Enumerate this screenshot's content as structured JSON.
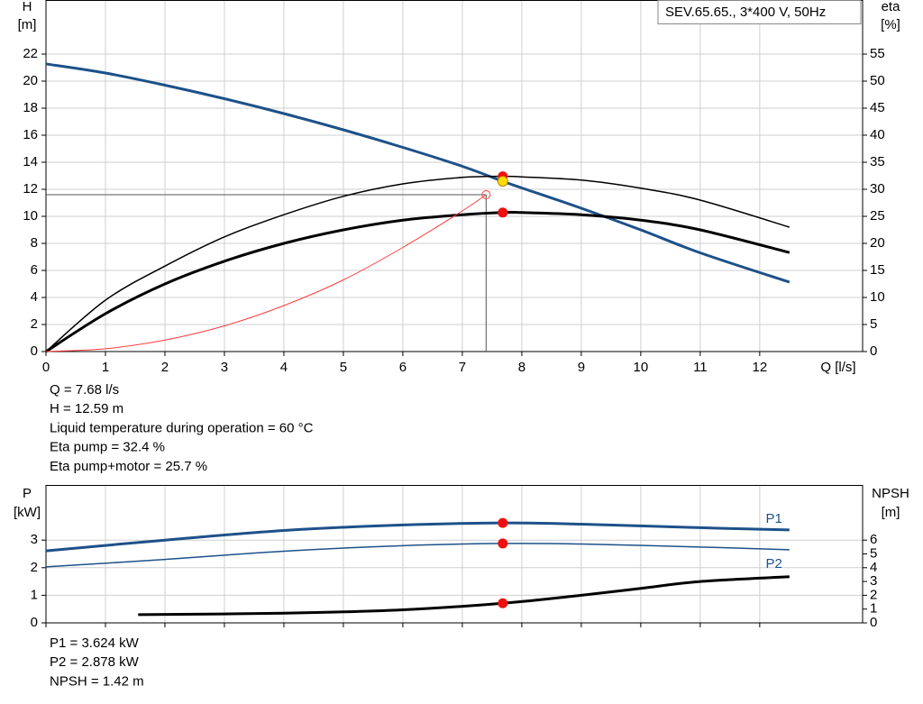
{
  "chart_data": [
    {
      "type": "line",
      "title": "SEV.65.65., 3*400 V, 50Hz",
      "ylabel": [
        "H",
        "[m]"
      ],
      "y2label": [
        "eta",
        "[%]"
      ],
      "xlabel": "Q [l/s]",
      "xlim": [
        0,
        13.73
      ],
      "xticks": [
        0,
        1,
        2,
        3,
        4,
        5,
        6,
        7,
        8,
        9,
        10,
        11,
        12
      ],
      "xtick_labels": true,
      "ylim": [
        0,
        26
      ],
      "yticks": [
        0,
        2,
        4,
        6,
        8,
        10,
        12,
        14,
        16,
        18,
        20,
        22
      ],
      "y2lim": [
        0,
        65
      ],
      "y2ticks": [
        0,
        5,
        10,
        15,
        20,
        25,
        30,
        35,
        40,
        45,
        50,
        55
      ],
      "grid": true,
      "series": [
        {
          "color": "#1d5189",
          "width": 3,
          "x": [
            0,
            1,
            2,
            3,
            4,
            5,
            6,
            7,
            7.68,
            8,
            9,
            10,
            11,
            12.5
          ],
          "values": [
            21.27,
            20.6,
            19.7,
            18.7,
            17.6,
            16.4,
            15.1,
            13.7,
            12.59,
            12.1,
            10.6,
            9.0,
            7.3,
            5.13
          ]
        },
        {
          "color": "#000000",
          "width": 1.5,
          "axis": "y2",
          "x": [
            0,
            1,
            2,
            3,
            4,
            5,
            6,
            7,
            7.68,
            8,
            9,
            10,
            11,
            12.5
          ],
          "values": [
            0,
            9.5,
            15.8,
            21.2,
            25.3,
            28.7,
            31.0,
            32.2,
            32.4,
            32.3,
            31.7,
            30.2,
            28.0,
            23.0
          ]
        },
        {
          "color": "#000000",
          "width": 3,
          "axis": "y2",
          "x": [
            0,
            1,
            2,
            3,
            4,
            5,
            6,
            7,
            7.68,
            8,
            9,
            10,
            11,
            12.5
          ],
          "values": [
            0,
            7.0,
            12.5,
            16.7,
            20.0,
            22.5,
            24.3,
            25.3,
            25.7,
            25.7,
            25.3,
            24.3,
            22.5,
            18.3
          ]
        },
        {
          "color": "#ff3b3b",
          "width": 1,
          "x": [
            0,
            1,
            2,
            3,
            4,
            5,
            6,
            7,
            7.4
          ],
          "values": [
            0,
            0.21,
            0.85,
            1.9,
            3.4,
            5.3,
            7.7,
            10.4,
            11.6
          ]
        }
      ],
      "guide": {
        "x": 7.4,
        "y": 11.6
      },
      "markers": [
        {
          "x": 7.68,
          "y": 32.4,
          "axis": "y2",
          "color": "#ee1111"
        },
        {
          "x": 7.68,
          "y": 12.59,
          "color": "#ffdd00"
        },
        {
          "x": 7.68,
          "y": 25.7,
          "axis": "y2",
          "color": "#ee1111"
        }
      ],
      "info": [
        "Q = 7.68 l/s",
        "H = 12.59 m",
        "Liquid temperature during operation = 60 °C",
        "Eta pump = 32.4 %",
        "Eta pump+motor = 25.7 %"
      ]
    },
    {
      "type": "line",
      "ylabel": [
        "P",
        "[kW]"
      ],
      "y2label": [
        "NPSH",
        "[m]"
      ],
      "xlim": [
        0,
        13.73
      ],
      "xticks": [
        0,
        1,
        2,
        3,
        4,
        5,
        6,
        7,
        8,
        9,
        10,
        11,
        12
      ],
      "xtick_labels": false,
      "ylim": [
        0,
        5
      ],
      "yticks": [
        0,
        1,
        2,
        3
      ],
      "y2lim": [
        0,
        10
      ],
      "y2ticks": [
        0,
        1,
        2,
        3,
        4,
        5,
        6
      ],
      "grid": true,
      "series": [
        {
          "name": "P1",
          "color": "#1d5189",
          "width": 3,
          "x": [
            0,
            2,
            4,
            6,
            7.68,
            9,
            11,
            12.5
          ],
          "values": [
            2.61,
            3.0,
            3.35,
            3.55,
            3.624,
            3.58,
            3.45,
            3.37
          ]
        },
        {
          "name": "P2",
          "color": "#1d5189",
          "width": 1.5,
          "x": [
            0,
            2,
            4,
            6,
            7.68,
            9,
            11,
            12.5
          ],
          "values": [
            2.03,
            2.3,
            2.6,
            2.8,
            2.878,
            2.86,
            2.75,
            2.65
          ]
        },
        {
          "color": "#000000",
          "width": 3,
          "axis": "y2",
          "x": [
            1.55,
            4,
            6,
            7.68,
            9,
            10,
            11,
            12.5
          ],
          "values": [
            0.6,
            0.7,
            0.95,
            1.42,
            2.0,
            2.5,
            3.0,
            3.35
          ]
        }
      ],
      "markers": [
        {
          "x": 7.68,
          "y": 3.624,
          "color": "#ee1111"
        },
        {
          "x": 7.68,
          "y": 2.878,
          "color": "#ee1111"
        },
        {
          "x": 7.68,
          "y": 1.42,
          "axis": "y2",
          "color": "#ee1111"
        }
      ],
      "info": [
        "P1 = 3.624 kW",
        "P2 = 2.878 kW",
        "NPSH = 1.42 m"
      ]
    }
  ]
}
